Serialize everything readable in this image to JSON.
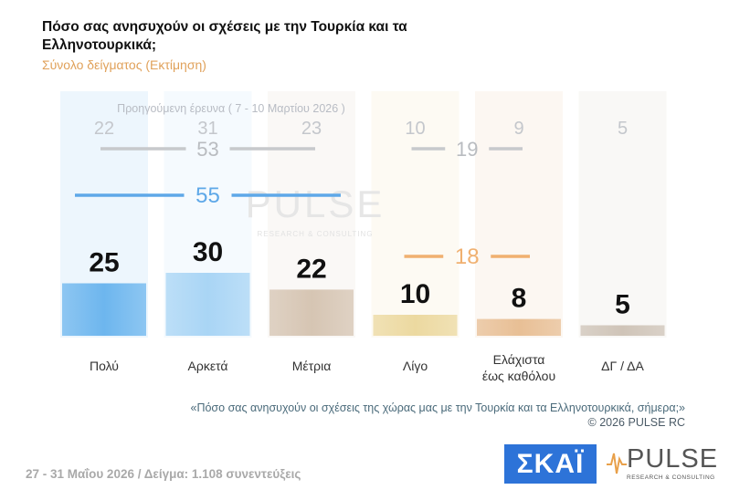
{
  "header": {
    "title": "Πόσο σας ανησυχούν οι σχέσεις με την Τουρκία και τα Ελληνοτουρκικά;",
    "subtitle": "Σύνολο δείγματος (Εκτίμηση)"
  },
  "chart_data": {
    "type": "bar",
    "categories": [
      "Πολύ",
      "Αρκετά",
      "Μέτρια",
      "Λίγο",
      "Ελάχιστα έως καθόλου",
      "ΔΓ / ΔΑ"
    ],
    "values": [
      25,
      30,
      22,
      10,
      8,
      5
    ],
    "previous_label": "Προηγούμενη έρευνα ( 7 - 10 Μαρτίου 2026 )",
    "previous_values": [
      22,
      31,
      23,
      10,
      9,
      5
    ],
    "group_totals": [
      {
        "label": "55",
        "value": 55,
        "previous": "53",
        "span": [
          0,
          2
        ],
        "color": "#5ea8e8"
      },
      {
        "label": "18",
        "value": 18,
        "previous": "19",
        "span": [
          3,
          4
        ],
        "color": "#f0b070"
      }
    ],
    "ylim": [
      0,
      40
    ],
    "colors": [
      "#6db6ee",
      "#a9d5f5",
      "#d6c5b3",
      "#ecd9a0",
      "#e8bf95",
      "#cfc4b8"
    ],
    "watermark": "PULSE",
    "watermark_tag": "RESEARCH & CONSULTING"
  },
  "question_text": "«Πόσο σας ανησυχούν οι σχέσεις της χώρας μας με την Τουρκία και τα Ελληνοτουρκικά, σήμερα;»",
  "copyright": "©  2026  PULSE RC",
  "footer": "27 - 31  Μαΐου 2026  /  Δείγμα:  1.108 συνεντεύξεις",
  "logos": {
    "skai": "ΣΚΑΪ",
    "pulse": "PULSE",
    "pulse_tag": "RESEARCH & CONSULTING"
  }
}
